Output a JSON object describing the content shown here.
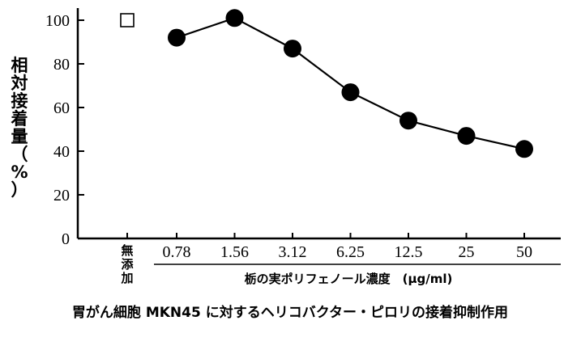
{
  "chart_data": {
    "type": "line",
    "ylabel": "相対接着量（%）",
    "ylim": [
      0,
      100
    ],
    "yticks": [
      "0",
      "20",
      "40",
      "60",
      "80",
      "100"
    ],
    "control_label": "無添加",
    "categories": [
      "0.78",
      "1.56",
      "3.12",
      "6.25",
      "12.5",
      "25",
      "50"
    ],
    "xlabel": "栃の実ポリフェノール濃度　(μg/ml)",
    "control_value": 100,
    "series": [
      {
        "values": [
          92,
          101,
          87,
          67,
          54,
          47,
          41
        ]
      }
    ],
    "caption": "胃がん細胞 MKN45 に対するヘリコバクター・ピロリの接着抑制作用",
    "grid": false,
    "marker": "filled-circle",
    "control_marker": "open-square"
  }
}
